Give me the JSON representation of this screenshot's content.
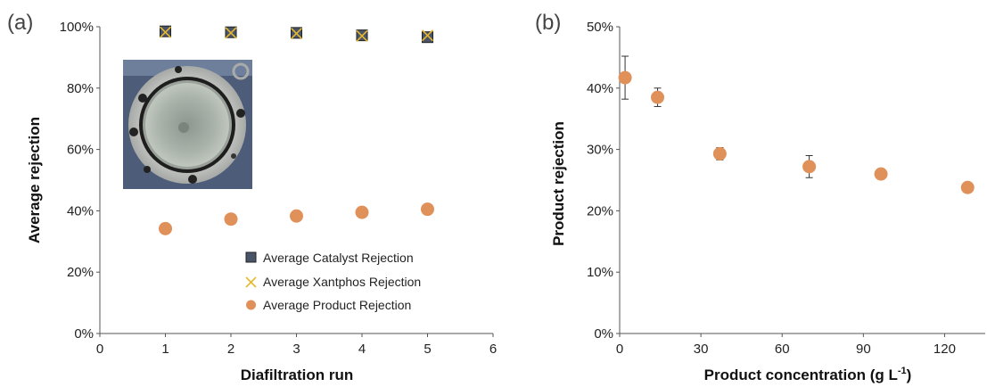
{
  "chart_data": [
    {
      "panel": "(a)",
      "type": "scatter",
      "xlabel": "Diafiltration run",
      "ylabel": "Average rejection",
      "xlim": [
        0,
        6
      ],
      "ylim": [
        0,
        100
      ],
      "xticks": [
        0,
        1,
        2,
        3,
        4,
        5,
        6
      ],
      "yticks": [
        0,
        20,
        40,
        60,
        80,
        100
      ],
      "ytick_format": "percent",
      "grid": false,
      "legend_position": "bottom-right",
      "inset_photo": true,
      "series": [
        {
          "name": "Average Catalyst Rejection",
          "marker": "square",
          "color": "#4a5468",
          "x": [
            1,
            2,
            3,
            4,
            5
          ],
          "y": [
            98.5,
            98.2,
            98.0,
            97.2,
            96.6
          ]
        },
        {
          "name": "Average Xantphos Rejection",
          "marker": "x",
          "color": "#e6b830",
          "x": [
            1,
            2,
            3,
            4,
            5
          ],
          "y": [
            98.2,
            98.0,
            97.8,
            97.0,
            97.2
          ]
        },
        {
          "name": "Average Product Rejection",
          "marker": "circle",
          "color": "#e0915a",
          "x": [
            1,
            2,
            3,
            4,
            5
          ],
          "y": [
            34.2,
            37.3,
            38.3,
            39.5,
            40.5
          ]
        }
      ]
    },
    {
      "panel": "(b)",
      "type": "scatter",
      "xlabel": "Product concentration (g L",
      "xlabel_superscript": "-1",
      "xlabel_suffix": ")",
      "ylabel": "Product rejection",
      "xlim": [
        0,
        135
      ],
      "ylim": [
        0,
        50
      ],
      "xticks": [
        0,
        30,
        60,
        90,
        120
      ],
      "yticks": [
        0,
        10,
        20,
        30,
        40,
        50
      ],
      "ytick_format": "percent",
      "grid": false,
      "series": [
        {
          "marker": "circle",
          "color": "#e0915a",
          "x": [
            2,
            14,
            37,
            70,
            96.5,
            128.5
          ],
          "y": [
            41.7,
            38.5,
            29.3,
            27.2,
            26.0,
            23.8
          ],
          "err": [
            3.5,
            1.5,
            1.0,
            1.8,
            0,
            0
          ]
        }
      ]
    }
  ]
}
